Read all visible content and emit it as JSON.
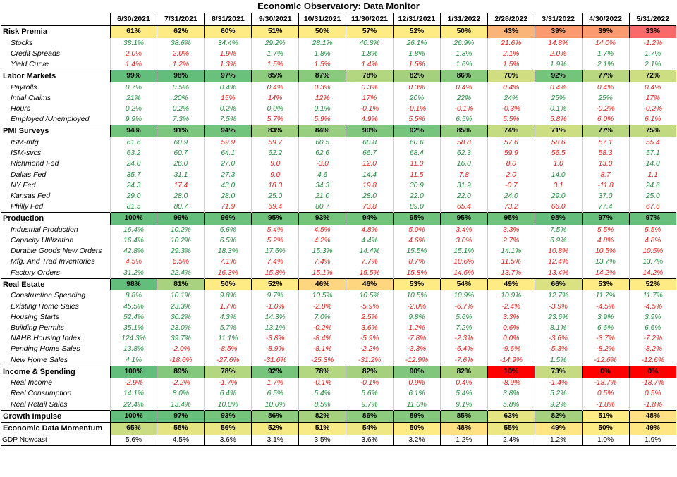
{
  "title": "Economic Observatory: Data Monitor",
  "dates": [
    "6/30/2021",
    "7/31/2021",
    "8/31/2021",
    "9/30/2021",
    "10/31/2021",
    "11/30/2021",
    "12/31/2021",
    "1/31/2022",
    "2/28/2022",
    "3/31/2022",
    "4/30/2022",
    "5/31/2022"
  ],
  "legend_colors": {
    "green_text": "#1f8a3c",
    "red_text": "#e0201b",
    "heat_high": "#63be7b",
    "heat_mid": "#ffeb84",
    "heat_low": "#f8696b",
    "heat_min": "#ff0000"
  },
  "rows": [
    {
      "type": "sec",
      "label": "Risk Premia",
      "values": [
        "61%",
        "62%",
        "60%",
        "51%",
        "50%",
        "57%",
        "52%",
        "50%",
        "43%",
        "39%",
        "39%",
        "33%"
      ],
      "bg": [
        "#FFEB84",
        "#FFEB84",
        "#FFEB84",
        "#FFEB84",
        "#FFEB84",
        "#FFEB84",
        "#FFEB84",
        "#FFEB84",
        "#FBB478",
        "#FA9A6E",
        "#FA9A6E",
        "#F8696B"
      ]
    },
    {
      "type": "sub",
      "label": "Stocks",
      "values": [
        "38.1%",
        "38.6%",
        "34.4%",
        "29.2%",
        "28.1%",
        "40.8%",
        "26.1%",
        "26.9%",
        "21.6%",
        "14.8%",
        "14.0%",
        "-1.2%"
      ],
      "c": [
        "g",
        "g",
        "g",
        "g",
        "g",
        "g",
        "g",
        "g",
        "r",
        "r",
        "r",
        "r"
      ]
    },
    {
      "type": "sub",
      "label": "Credit Spreads",
      "values": [
        "2.0%",
        "2.0%",
        "1.9%",
        "1.7%",
        "1.8%",
        "1.8%",
        "1.8%",
        "1.8%",
        "2.1%",
        "2.0%",
        "1.7%",
        "1.7%"
      ],
      "c": [
        "r",
        "r",
        "r",
        "g",
        "g",
        "g",
        "g",
        "g",
        "r",
        "r",
        "g",
        "g"
      ]
    },
    {
      "type": "sub",
      "label": "Yield Curve",
      "values": [
        "1.4%",
        "1.2%",
        "1.3%",
        "1.5%",
        "1.5%",
        "1.4%",
        "1.5%",
        "1.6%",
        "1.5%",
        "1.9%",
        "2.1%",
        "2.1%"
      ],
      "c": [
        "r",
        "r",
        "r",
        "r",
        "r",
        "r",
        "r",
        "g",
        "r",
        "g",
        "g",
        "g"
      ]
    },
    {
      "type": "sec",
      "label": "Labor Markets",
      "values": [
        "99%",
        "98%",
        "97%",
        "85%",
        "87%",
        "78%",
        "82%",
        "86%",
        "70%",
        "92%",
        "77%",
        "72%"
      ],
      "bg": [
        "#63BE7B",
        "#63BE7B",
        "#6AC17B",
        "#8FCB7E",
        "#8ACA7E",
        "#B3D680",
        "#A5D17F",
        "#8ACA7E",
        "#D0DE81",
        "#75C47C",
        "#B8D780",
        "#CCDD82"
      ]
    },
    {
      "type": "sub",
      "label": "Payrolls",
      "values": [
        "0.7%",
        "0.5%",
        "0.4%",
        "0.4%",
        "0.3%",
        "0.3%",
        "0.3%",
        "0.4%",
        "0.4%",
        "0.4%",
        "0.4%",
        "0.4%"
      ],
      "c": [
        "g",
        "g",
        "g",
        "r",
        "r",
        "r",
        "r",
        "r",
        "r",
        "r",
        "r",
        "r"
      ]
    },
    {
      "type": "sub",
      "label": "Intial Claims",
      "values": [
        "21%",
        "20%",
        "15%",
        "14%",
        "12%",
        "17%",
        "20%",
        "22%",
        "24%",
        "25%",
        "25%",
        "17%"
      ],
      "c": [
        "g",
        "g",
        "r",
        "r",
        "r",
        "r",
        "g",
        "g",
        "g",
        "g",
        "g",
        "r"
      ]
    },
    {
      "type": "sub",
      "label": "Hours",
      "values": [
        "0.2%",
        "0.2%",
        "0.2%",
        "0.0%",
        "0.1%",
        "-0.1%",
        "-0.1%",
        "-0.1%",
        "-0.3%",
        "0.1%",
        "-0.2%",
        "-0.2%"
      ],
      "c": [
        "g",
        "g",
        "g",
        "g",
        "g",
        "r",
        "r",
        "r",
        "r",
        "g",
        "r",
        "r"
      ]
    },
    {
      "type": "sub",
      "label": "Employed /Unemployed",
      "values": [
        "9.9%",
        "7.3%",
        "7.5%",
        "5.7%",
        "5.9%",
        "4.9%",
        "5.5%",
        "6.5%",
        "5.5%",
        "5.8%",
        "6.0%",
        "6.1%"
      ],
      "c": [
        "g",
        "g",
        "g",
        "r",
        "r",
        "r",
        "r",
        "g",
        "r",
        "r",
        "r",
        "r"
      ]
    },
    {
      "type": "sec",
      "label": "PMI Surveys",
      "values": [
        "94%",
        "91%",
        "94%",
        "83%",
        "84%",
        "90%",
        "92%",
        "85%",
        "74%",
        "71%",
        "77%",
        "75%"
      ],
      "bg": [
        "#72C37C",
        "#7CC67D",
        "#72C37C",
        "#9DCF7F",
        "#98CE7F",
        "#80C77D",
        "#77C47C",
        "#93CD7F",
        "#C4DB81",
        "#CCDD82",
        "#B8D780",
        "#C1DA81"
      ]
    },
    {
      "type": "sub",
      "label": "ISM-mfg",
      "values": [
        "61.6",
        "60.9",
        "59.9",
        "59.7",
        "60.5",
        "60.8",
        "60.6",
        "58.8",
        "57.6",
        "58.6",
        "57.1",
        "55.4"
      ],
      "c": [
        "g",
        "g",
        "r",
        "r",
        "g",
        "g",
        "g",
        "r",
        "r",
        "r",
        "r",
        "r"
      ]
    },
    {
      "type": "sub",
      "label": "ISM-svcs",
      "values": [
        "63.2",
        "60.7",
        "64.1",
        "62.2",
        "62.6",
        "66.7",
        "68.4",
        "62.3",
        "59.9",
        "56.5",
        "58.3",
        "57.1"
      ],
      "c": [
        "g",
        "g",
        "g",
        "g",
        "g",
        "g",
        "g",
        "g",
        "r",
        "r",
        "r",
        "g"
      ]
    },
    {
      "type": "sub",
      "label": "Richmond Fed",
      "values": [
        "24.0",
        "26.0",
        "27.0",
        "9.0",
        "-3.0",
        "12.0",
        "11.0",
        "16.0",
        "8.0",
        "1.0",
        "13.0",
        "14.0"
      ],
      "c": [
        "g",
        "g",
        "g",
        "r",
        "r",
        "r",
        "r",
        "g",
        "r",
        "r",
        "r",
        "g"
      ]
    },
    {
      "type": "sub",
      "label": "Dallas Fed",
      "values": [
        "35.7",
        "31.1",
        "27.3",
        "9.0",
        "4.6",
        "14.4",
        "11.5",
        "7.8",
        "2.0",
        "14.0",
        "8.7",
        "1.1"
      ],
      "c": [
        "g",
        "g",
        "g",
        "r",
        "g",
        "g",
        "r",
        "r",
        "r",
        "g",
        "r",
        "r"
      ]
    },
    {
      "type": "sub",
      "label": "NY Fed",
      "values": [
        "24.3",
        "17.4",
        "43.0",
        "18.3",
        "34.3",
        "19.8",
        "30.9",
        "31.9",
        "-0.7",
        "3.1",
        "-11.8",
        "24.6"
      ],
      "c": [
        "g",
        "r",
        "g",
        "r",
        "g",
        "r",
        "g",
        "g",
        "r",
        "r",
        "r",
        "g"
      ]
    },
    {
      "type": "sub",
      "label": "Kansas Fed",
      "values": [
        "29.0",
        "28.0",
        "28.0",
        "25.0",
        "21.0",
        "28.0",
        "22.0",
        "22.0",
        "24.0",
        "29.0",
        "37.0",
        "25.0"
      ],
      "c": [
        "g",
        "g",
        "g",
        "g",
        "g",
        "g",
        "g",
        "g",
        "g",
        "g",
        "g",
        "g"
      ]
    },
    {
      "type": "sub",
      "label": "Philly Fed",
      "values": [
        "81.5",
        "80.7",
        "71.9",
        "69.4",
        "80.7",
        "73.8",
        "89.0",
        "65.4",
        "73.2",
        "66.0",
        "77.4",
        "67.6"
      ],
      "c": [
        "g",
        "g",
        "r",
        "r",
        "g",
        "r",
        "g",
        "r",
        "r",
        "r",
        "g",
        "r"
      ]
    },
    {
      "type": "sec",
      "label": "Production",
      "values": [
        "100%",
        "99%",
        "96%",
        "95%",
        "93%",
        "94%",
        "95%",
        "95%",
        "95%",
        "98%",
        "97%",
        "97%"
      ],
      "bg": [
        "#63BE7B",
        "#63BE7B",
        "#6AC17B",
        "#6EC27C",
        "#75C47C",
        "#72C37C",
        "#6EC27C",
        "#6EC27C",
        "#6EC27C",
        "#63BE7B",
        "#66BF7B",
        "#66BF7B"
      ]
    },
    {
      "type": "sub",
      "label": "Industrial Production",
      "values": [
        "16.4%",
        "10.2%",
        "6.6%",
        "5.4%",
        "4.5%",
        "4.8%",
        "5.0%",
        "3.4%",
        "3.3%",
        "7.5%",
        "5.5%",
        "5.5%"
      ],
      "c": [
        "g",
        "g",
        "g",
        "r",
        "r",
        "r",
        "r",
        "r",
        "r",
        "g",
        "r",
        "r"
      ]
    },
    {
      "type": "sub",
      "label": "Capacity Utilization",
      "values": [
        "16.4%",
        "10.2%",
        "6.5%",
        "5.2%",
        "4.2%",
        "4.4%",
        "4.6%",
        "3.0%",
        "2.7%",
        "6.9%",
        "4.8%",
        "4.8%"
      ],
      "c": [
        "g",
        "g",
        "g",
        "r",
        "r",
        "g",
        "r",
        "r",
        "r",
        "g",
        "r",
        "r"
      ]
    },
    {
      "type": "sub",
      "label": "Durable Goods New Orders",
      "values": [
        "42.8%",
        "29.3%",
        "18.3%",
        "17.6%",
        "15.3%",
        "14.4%",
        "15.5%",
        "15.1%",
        "14.1%",
        "10.8%",
        "10.5%",
        "10.5%"
      ],
      "c": [
        "g",
        "g",
        "g",
        "g",
        "g",
        "g",
        "g",
        "g",
        "g",
        "r",
        "r",
        "r"
      ]
    },
    {
      "type": "sub",
      "label": "Mfg. And Trad Inventories",
      "values": [
        "4.5%",
        "6.5%",
        "7.1%",
        "7.4%",
        "7.4%",
        "7.7%",
        "8.7%",
        "10.6%",
        "11.5%",
        "12.4%",
        "13.7%",
        "13.7%"
      ],
      "c": [
        "r",
        "r",
        "r",
        "r",
        "r",
        "r",
        "r",
        "r",
        "r",
        "r",
        "g",
        "g"
      ]
    },
    {
      "type": "sub",
      "label": "Factory Orders",
      "values": [
        "31.2%",
        "22.4%",
        "16.3%",
        "15.8%",
        "15.1%",
        "15.5%",
        "15.8%",
        "14.6%",
        "13.7%",
        "13.4%",
        "14.2%",
        "14.2%"
      ],
      "c": [
        "g",
        "g",
        "r",
        "r",
        "r",
        "r",
        "r",
        "r",
        "r",
        "r",
        "r",
        "r"
      ]
    },
    {
      "type": "sec",
      "label": "Real Estate",
      "values": [
        "98%",
        "81%",
        "50%",
        "52%",
        "46%",
        "46%",
        "53%",
        "54%",
        "49%",
        "66%",
        "53%",
        "52%"
      ],
      "bg": [
        "#63BE7B",
        "#A8D27F",
        "#FFEB84",
        "#FFEB84",
        "#FFD680",
        "#FFD680",
        "#FFEB84",
        "#FFEB84",
        "#FFEB84",
        "#DAE182",
        "#FFEB84",
        "#FFEB84"
      ]
    },
    {
      "type": "sub",
      "label": "Construction Spending",
      "values": [
        "8.8%",
        "10.1%",
        "9.8%",
        "9.7%",
        "10.5%",
        "10.5%",
        "10.5%",
        "10.9%",
        "10.9%",
        "12.7%",
        "11.7%",
        "11.7%"
      ],
      "c": [
        "g",
        "g",
        "g",
        "g",
        "g",
        "g",
        "g",
        "g",
        "g",
        "g",
        "g",
        "g"
      ]
    },
    {
      "type": "sub",
      "label": "Existing Home Sales",
      "values": [
        "45.5%",
        "23.3%",
        "1.7%",
        "-1.0%",
        "-2.8%",
        "-5.9%",
        "-2.0%",
        "-6.7%",
        "-2.4%",
        "-3.9%",
        "-4.5%",
        "-4.5%"
      ],
      "c": [
        "g",
        "g",
        "r",
        "r",
        "r",
        "r",
        "r",
        "r",
        "r",
        "r",
        "r",
        "r"
      ]
    },
    {
      "type": "sub",
      "label": "Housing Starts",
      "values": [
        "52.4%",
        "30.2%",
        "4.3%",
        "14.3%",
        "7.0%",
        "2.5%",
        "9.8%",
        "5.6%",
        "3.3%",
        "23.6%",
        "3.9%",
        "3.9%"
      ],
      "c": [
        "g",
        "g",
        "g",
        "g",
        "g",
        "r",
        "g",
        "g",
        "r",
        "g",
        "g",
        "g"
      ]
    },
    {
      "type": "sub",
      "label": "Building Permits",
      "values": [
        "35.1%",
        "23.0%",
        "5.7%",
        "13.1%",
        "-0.2%",
        "3.6%",
        "1.2%",
        "7.2%",
        "0.6%",
        "8.1%",
        "6.6%",
        "6.6%"
      ],
      "c": [
        "g",
        "g",
        "g",
        "g",
        "r",
        "r",
        "r",
        "g",
        "r",
        "g",
        "g",
        "g"
      ]
    },
    {
      "type": "sub",
      "label": "NAHB Housing Index",
      "values": [
        "124.3%",
        "39.7%",
        "11.1%",
        "-3.8%",
        "-8.4%",
        "-5.9%",
        "-7.8%",
        "-2.3%",
        "0.0%",
        "-3.6%",
        "-3.7%",
        "-7.2%"
      ],
      "c": [
        "g",
        "g",
        "g",
        "r",
        "r",
        "r",
        "r",
        "r",
        "r",
        "r",
        "r",
        "r"
      ]
    },
    {
      "type": "sub",
      "label": "Pending Home Sales",
      "values": [
        "13.8%",
        "-2.0%",
        "-8.5%",
        "-8.9%",
        "-8.1%",
        "-2.2%",
        "-3.3%",
        "-6.4%",
        "-9.6%",
        "-5.3%",
        "-8.2%",
        "-8.2%"
      ],
      "c": [
        "g",
        "r",
        "r",
        "r",
        "r",
        "r",
        "r",
        "r",
        "r",
        "r",
        "r",
        "r"
      ]
    },
    {
      "type": "sub",
      "label": "New Home Sales",
      "values": [
        "4.1%",
        "-18.6%",
        "-27.6%",
        "-31.6%",
        "-25.3%",
        "-31.2%",
        "-12.9%",
        "-7.6%",
        "-14.9%",
        "1.5%",
        "-12.6%",
        "-12.6%"
      ],
      "c": [
        "g",
        "r",
        "r",
        "r",
        "r",
        "r",
        "r",
        "r",
        "r",
        "g",
        "r",
        "r"
      ]
    },
    {
      "type": "sec",
      "label": "Income & Spending",
      "values": [
        "100%",
        "89%",
        "78%",
        "92%",
        "78%",
        "82%",
        "90%",
        "82%",
        "10%",
        "73%",
        "0%",
        "0%"
      ],
      "bg": [
        "#63BE7B",
        "#84C87D",
        "#B3D680",
        "#77C47C",
        "#B3D680",
        "#A5D17F",
        "#80C77D",
        "#A5D17F",
        "#FF0000",
        "#C6DB81",
        "#FF0000",
        "#FF0000"
      ]
    },
    {
      "type": "sub",
      "label": "Real Income",
      "values": [
        "-2.9%",
        "-2.2%",
        "-1.7%",
        "1.7%",
        "-0.1%",
        "-0.1%",
        "0.9%",
        "0.4%",
        "-8.9%",
        "-1.4%",
        "-18.7%",
        "-18.7%"
      ],
      "c": [
        "r",
        "r",
        "r",
        "r",
        "r",
        "r",
        "r",
        "r",
        "r",
        "r",
        "r",
        "r"
      ]
    },
    {
      "type": "sub",
      "label": "Real Consumption",
      "values": [
        "14.1%",
        "8.0%",
        "6.4%",
        "6.5%",
        "5.4%",
        "5.6%",
        "6.1%",
        "5.4%",
        "3.8%",
        "5.2%",
        "0.5%",
        "0.5%"
      ],
      "c": [
        "g",
        "g",
        "g",
        "g",
        "g",
        "g",
        "g",
        "g",
        "g",
        "g",
        "r",
        "r"
      ]
    },
    {
      "type": "sub",
      "label": "Real Retail Sales",
      "values": [
        "22.4%",
        "13.4%",
        "10.0%",
        "10.0%",
        "8.5%",
        "9.7%",
        "11.0%",
        "9.1%",
        "5.8%",
        "9.2%",
        "-1.8%",
        "-1.8%"
      ],
      "c": [
        "g",
        "g",
        "g",
        "g",
        "g",
        "g",
        "g",
        "g",
        "g",
        "g",
        "r",
        "r"
      ]
    },
    {
      "type": "sum",
      "label": "Growth Impulse",
      "values": [
        "100%",
        "97%",
        "93%",
        "86%",
        "82%",
        "86%",
        "89%",
        "85%",
        "63%",
        "82%",
        "51%",
        "48%"
      ],
      "bg": [
        "#63BE7B",
        "#66BF7B",
        "#75C47C",
        "#8DCB7E",
        "#A5D17F",
        "#8DCB7E",
        "#84C87D",
        "#93CD7F",
        "#E4E483",
        "#A5D17F",
        "#FFEB84",
        "#FFE183"
      ]
    },
    {
      "type": "sum",
      "label": "Economic Data Momentum",
      "values": [
        "65%",
        "58%",
        "56%",
        "52%",
        "51%",
        "54%",
        "50%",
        "48%",
        "55%",
        "49%",
        "50%",
        "49%"
      ],
      "bg": [
        "#C9DC81",
        "#E4E483",
        "#EAE683",
        "#F5E984",
        "#F8EA84",
        "#EFE784",
        "#FFEB84",
        "#FFE183",
        "#ECE683",
        "#FFE683",
        "#FFEB84",
        "#FFE683"
      ]
    },
    {
      "type": "plain",
      "label": "GDP Nowcast",
      "values": [
        "5.6%",
        "4.5%",
        "3.6%",
        "3.1%",
        "3.5%",
        "3.6%",
        "3.2%",
        "1.2%",
        "2.4%",
        "1.2%",
        "1.0%",
        "1.9%"
      ]
    }
  ]
}
